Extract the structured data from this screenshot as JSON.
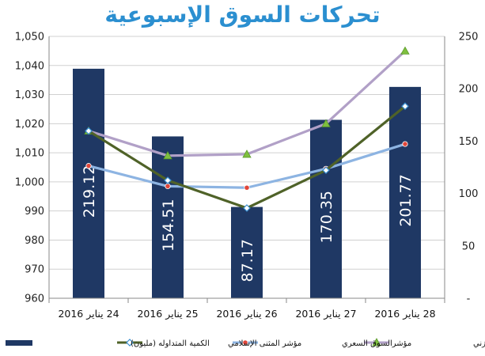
{
  "chart_data": {
    "type": "bar",
    "title": "تحركات السوق الإسبوعية",
    "categories": [
      "24 يناير 2016",
      "25 يناير 2016",
      "26 يناير 2016",
      "27 يناير 2016",
      "28 يناير 2016"
    ],
    "left_axis": {
      "min": 960,
      "max": 1050,
      "ticks": [
        "960",
        "970",
        "980",
        "990",
        "1,000",
        "1,010",
        "1,020",
        "1,030",
        "1,040",
        "1,050"
      ]
    },
    "right_axis": {
      "min": 0,
      "max": 250,
      "ticks": [
        "-",
        "50",
        "100",
        "150",
        "200",
        "250"
      ]
    },
    "series": [
      {
        "name": "الكمية المتداوله (مليون)",
        "kind": "bar",
        "axis": "right",
        "color": "#1f3864",
        "values": [
          219.12,
          154.51,
          87.17,
          170.35,
          201.77
        ],
        "labels": [
          "219.12",
          "154.51",
          "87.17",
          "170.35",
          "201.77"
        ]
      },
      {
        "name": "مؤشر المثنى الإسلامي",
        "kind": "line",
        "axis": "left",
        "color": "#4f6228",
        "marker": "diamond",
        "values": [
          1017.5,
          1000.5,
          991,
          1004,
          1026
        ]
      },
      {
        "name": "مؤشرالسوق السعري",
        "kind": "line",
        "axis": "left",
        "color": "#8db4e2",
        "marker": "dot",
        "values": [
          1005.5,
          998.5,
          998,
          1004.5,
          1013
        ]
      },
      {
        "name": "مؤشر السوق الوزني",
        "kind": "line",
        "axis": "left",
        "color": "#b1a0c7",
        "marker": "triangle",
        "values": [
          1017.5,
          1009,
          1009.5,
          1020,
          1045
        ]
      }
    ],
    "legend": "bottom",
    "grid": true
  }
}
